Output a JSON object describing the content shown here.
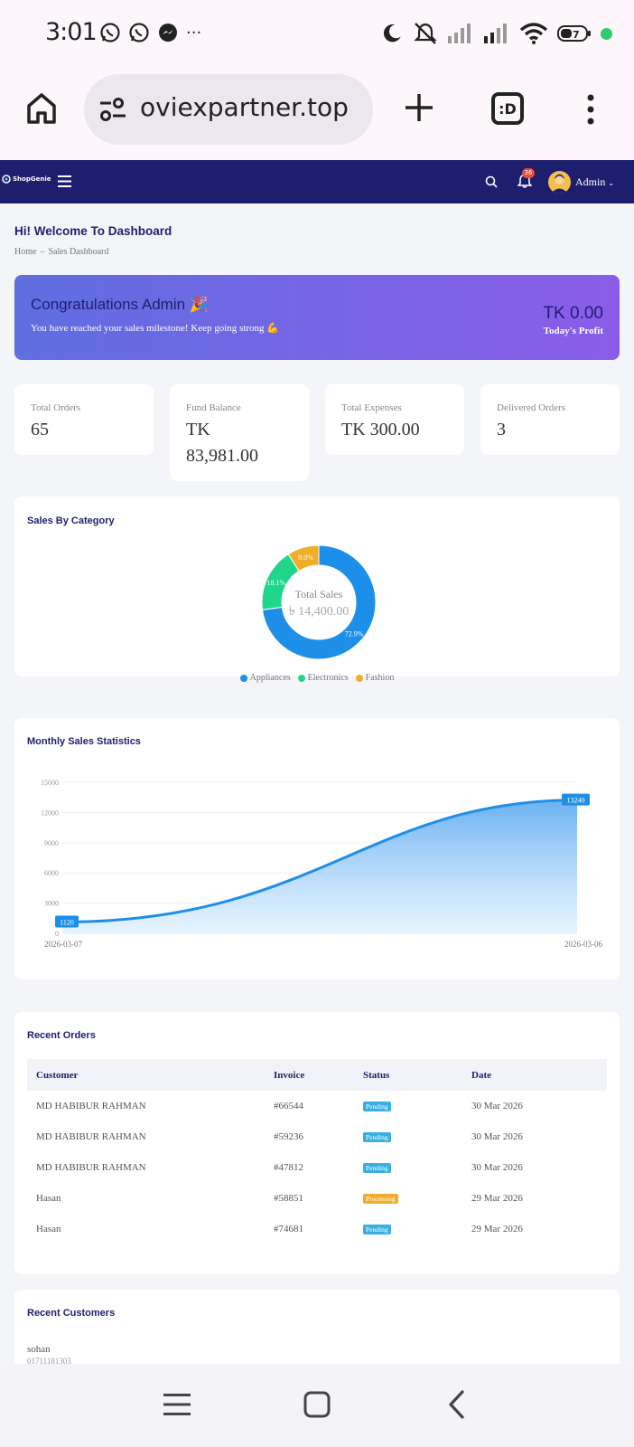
{
  "status_bar": {
    "time": "3:01",
    "more": "···"
  },
  "browser": {
    "url": "oviexpartner.top",
    "tab_label": ":D"
  },
  "header": {
    "logo_text": "ShopGenie",
    "notification_count": "36",
    "user_name": "Admin"
  },
  "page": {
    "title": "Hi! Welcome To Dashboard",
    "breadcrumb": [
      "Home",
      "–",
      "Sales Dashboard"
    ]
  },
  "banner": {
    "title": "Congratulations Admin 🎉",
    "subtitle": "You have reached your sales milestone! Keep going strong 💪",
    "amount": "TK 0.00",
    "amount_label": "Today's Profit"
  },
  "stats": [
    {
      "label": "Total Orders",
      "value": "65"
    },
    {
      "label": "Fund Balance",
      "value": "TK 83,981.00"
    },
    {
      "label": "Total Expenses",
      "value": "TK 300.00"
    },
    {
      "label": "Delivered Orders",
      "value": "3"
    }
  ],
  "category_panel": {
    "title": "Sales By Category",
    "center_label": "Total Sales",
    "center_value": "৳ 14,400.00"
  },
  "monthly_panel": {
    "title": "Monthly Sales Statistics"
  },
  "chart_data": [
    {
      "type": "pie",
      "categories": [
        "Appliances",
        "Electronics",
        "Fashion"
      ],
      "values": [
        72.9,
        18.1,
        9.0
      ],
      "labels": [
        "72.9%",
        "18.1%",
        "9.0%"
      ],
      "colors": [
        "#1e8fe8",
        "#1fd68a",
        "#f0ad2a"
      ],
      "center_label": "Total Sales",
      "center_value": "৳ 14,400.00",
      "legend": "bottom"
    },
    {
      "type": "area",
      "x": [
        "2026-03-07",
        "2026-03-06"
      ],
      "values": [
        1120,
        13240
      ],
      "data_labels": [
        "1120",
        "13240"
      ],
      "yticks": [
        "0",
        "3000",
        "6000",
        "9000",
        "12000",
        "15000"
      ],
      "ylim": [
        0,
        15000
      ],
      "color": "#1e8fe8",
      "grid": true
    }
  ],
  "orders": {
    "title": "Recent Orders",
    "columns": [
      "Customer",
      "Invoice",
      "Status",
      "Date"
    ],
    "rows": [
      {
        "customer": "MD HABIBUR RAHMAN",
        "invoice": "#66544",
        "status": "Pending",
        "date": "30 Mar 2026"
      },
      {
        "customer": "MD HABIBUR RAHMAN",
        "invoice": "#59236",
        "status": "Pending",
        "date": "30 Mar 2026"
      },
      {
        "customer": "MD HABIBUR RAHMAN",
        "invoice": "#47812",
        "status": "Pending",
        "date": "30 Mar 2026"
      },
      {
        "customer": "Hasan",
        "invoice": "#58851",
        "status": "Processing",
        "date": "29 Mar 2026"
      },
      {
        "customer": "Hasan",
        "invoice": "#74681",
        "status": "Pending",
        "date": "29 Mar 2026"
      }
    ],
    "status_colors": {
      "Pending": "#3ab0e0",
      "Processing": "#f0ad2a"
    }
  },
  "customers": {
    "title": "Recent Customers",
    "first_name": "sohan",
    "first_phone": "01711181303"
  }
}
